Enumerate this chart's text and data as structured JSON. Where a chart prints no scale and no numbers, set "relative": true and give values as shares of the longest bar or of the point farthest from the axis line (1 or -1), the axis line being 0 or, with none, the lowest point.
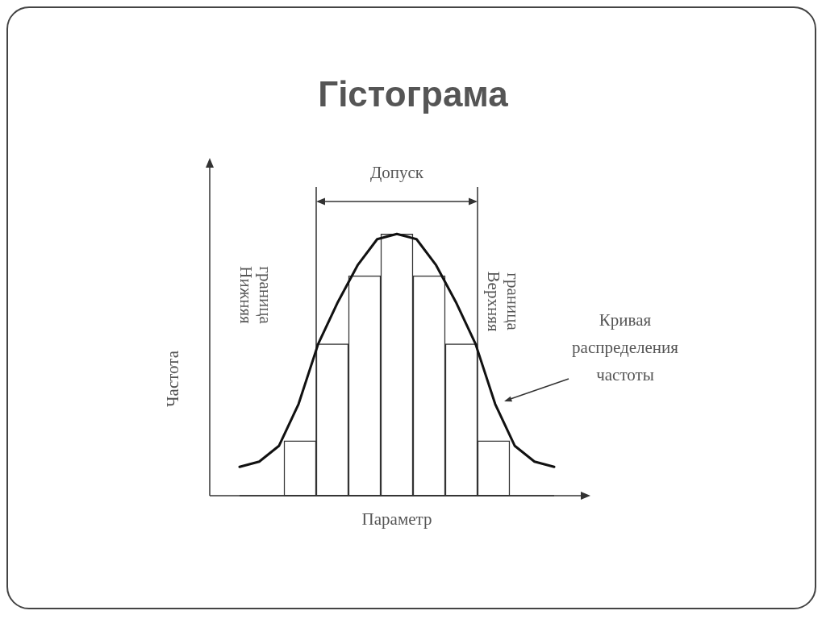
{
  "chart_data": [
    {
      "type": "bar",
      "title": "Гістограма",
      "xlabel": "Параметр",
      "ylabel": "Частота",
      "relative": true,
      "categories": [
        null,
        null,
        null,
        null,
        null,
        null,
        null
      ],
      "color": "#ffffff",
      "values": [
        0.21,
        0.58,
        0.84,
        1,
        0.84,
        0.58,
        0.21
      ],
      "annotations": [
        "Допуск",
        "Нижняя граница",
        "Верхняя граница",
        "Кривая распределения частоты"
      ]
    },
    {
      "type": "line",
      "relative": true,
      "categories": [
        null,
        null,
        null,
        null,
        null,
        null,
        null,
        null,
        null,
        null,
        null,
        null,
        null,
        null,
        null,
        null,
        null
      ],
      "color": "#111111",
      "values": [
        0.11,
        0.13,
        0.19,
        0.35,
        0.58,
        0.74,
        0.88,
        0.98,
        1,
        0.98,
        0.88,
        0.74,
        0.58,
        0.35,
        0.19,
        0.13,
        0.11
      ],
      "marker": "none",
      "line_style": "solid"
    }
  ]
}
